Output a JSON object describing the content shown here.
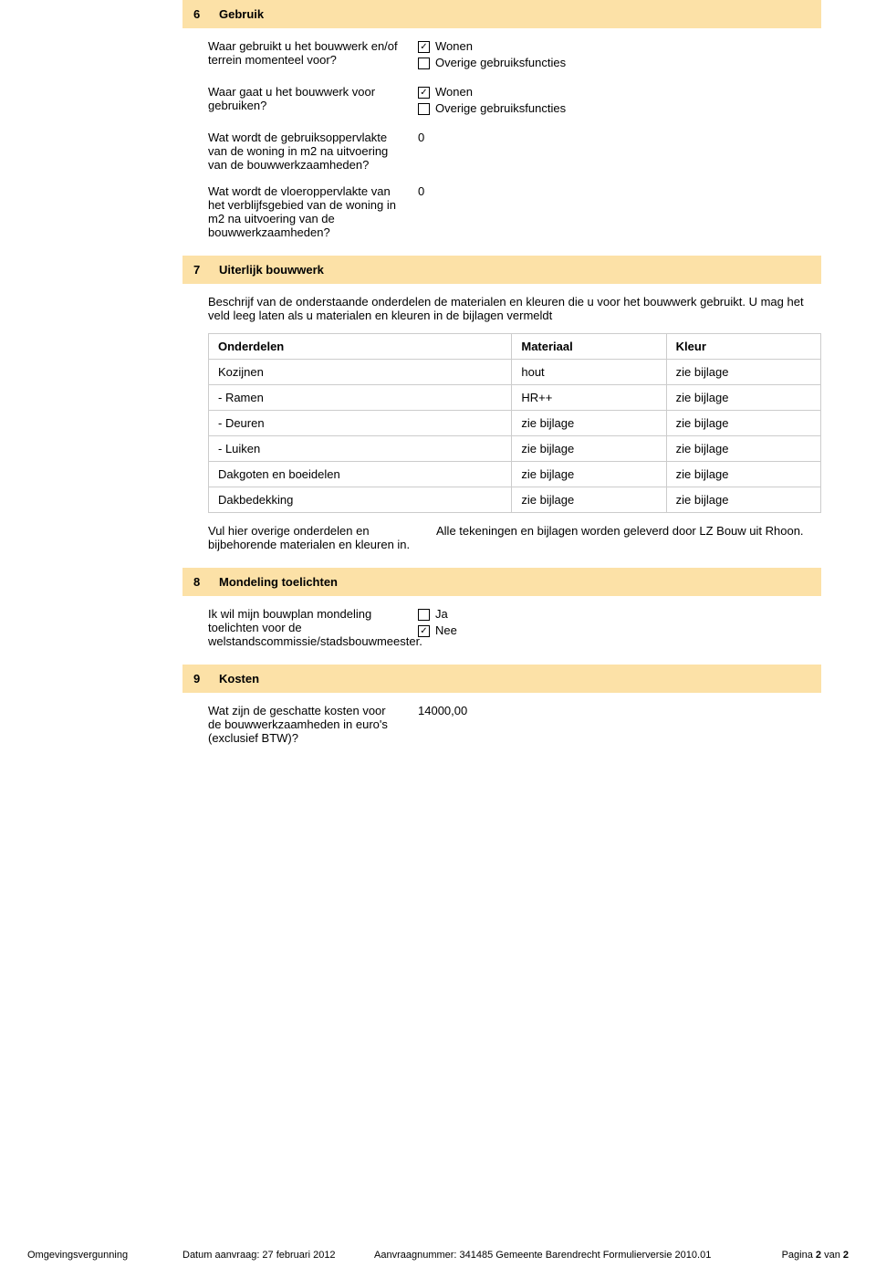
{
  "colors": {
    "header_bg": "#fce1a7",
    "text": "#000000",
    "table_border": "#cccccc",
    "page_bg": "#ffffff"
  },
  "sections": {
    "s6": {
      "num": "6",
      "title": "Gebruik",
      "q1": "Waar gebruikt u het bouwwerk en/of terrein momenteel voor?",
      "q1_opts": [
        {
          "label": "Wonen",
          "checked": true
        },
        {
          "label": "Overige gebruiksfuncties",
          "checked": false
        }
      ],
      "q2": "Waar gaat u het bouwwerk voor gebruiken?",
      "q2_opts": [
        {
          "label": "Wonen",
          "checked": true
        },
        {
          "label": "Overige gebruiksfuncties",
          "checked": false
        }
      ],
      "q3": "Wat wordt de gebruiksoppervlakte van de woning in m2 na uitvoering van de bouwwerkzaamheden?",
      "q3_val": "0",
      "q4": "Wat wordt de vloeroppervlakte van het verblijfsgebied van de woning in m2 na uitvoering van de bouwwerkzaamheden?",
      "q4_val": "0"
    },
    "s7": {
      "num": "7",
      "title": "Uiterlijk bouwwerk",
      "desc": "Beschrijf van de onderstaande onderdelen de materialen en kleuren die u voor het bouwwerk gebruikt. U mag het veld leeg laten als u materialen en kleuren in de bijlagen vermeldt",
      "table": {
        "headers": [
          "Onderdelen",
          "Materiaal",
          "Kleur"
        ],
        "rows": [
          [
            "Kozijnen",
            "hout",
            "zie bijlage"
          ],
          [
            "- Ramen",
            "HR++",
            "zie bijlage"
          ],
          [
            "- Deuren",
            "zie bijlage",
            "zie bijlage"
          ],
          [
            "- Luiken",
            "zie bijlage",
            "zie bijlage"
          ],
          [
            "Dakgoten en boeidelen",
            "zie bijlage",
            "zie bijlage"
          ],
          [
            "Dakbedekking",
            "zie bijlage",
            "zie bijlage"
          ]
        ]
      },
      "note_left": "Vul hier overige onderdelen en bijbehorende materialen en kleuren in.",
      "note_right": "Alle tekeningen en bijlagen worden geleverd door LZ Bouw uit Rhoon."
    },
    "s8": {
      "num": "8",
      "title": "Mondeling toelichten",
      "q": "Ik wil mijn bouwplan mondeling toelichten voor de welstandscommissie/stadsbouwmeester.",
      "opts": [
        {
          "label": "Ja",
          "checked": false
        },
        {
          "label": "Nee",
          "checked": true
        }
      ]
    },
    "s9": {
      "num": "9",
      "title": "Kosten",
      "q": "Wat zijn de geschatte kosten voor de bouwwerkzaamheden in euro's (exclusief BTW)?",
      "val": "14000,00"
    }
  },
  "footer": {
    "doc_type": "Omgevingsvergunning",
    "date_label": "Datum aanvraag: 27 februari 2012",
    "meta": "Aanvraagnummer: 341485  Gemeente Barendrecht  Formulierversie 2010.01",
    "page_prefix": "Pagina ",
    "page_current": "2",
    "page_sep": " van ",
    "page_total": "2"
  }
}
